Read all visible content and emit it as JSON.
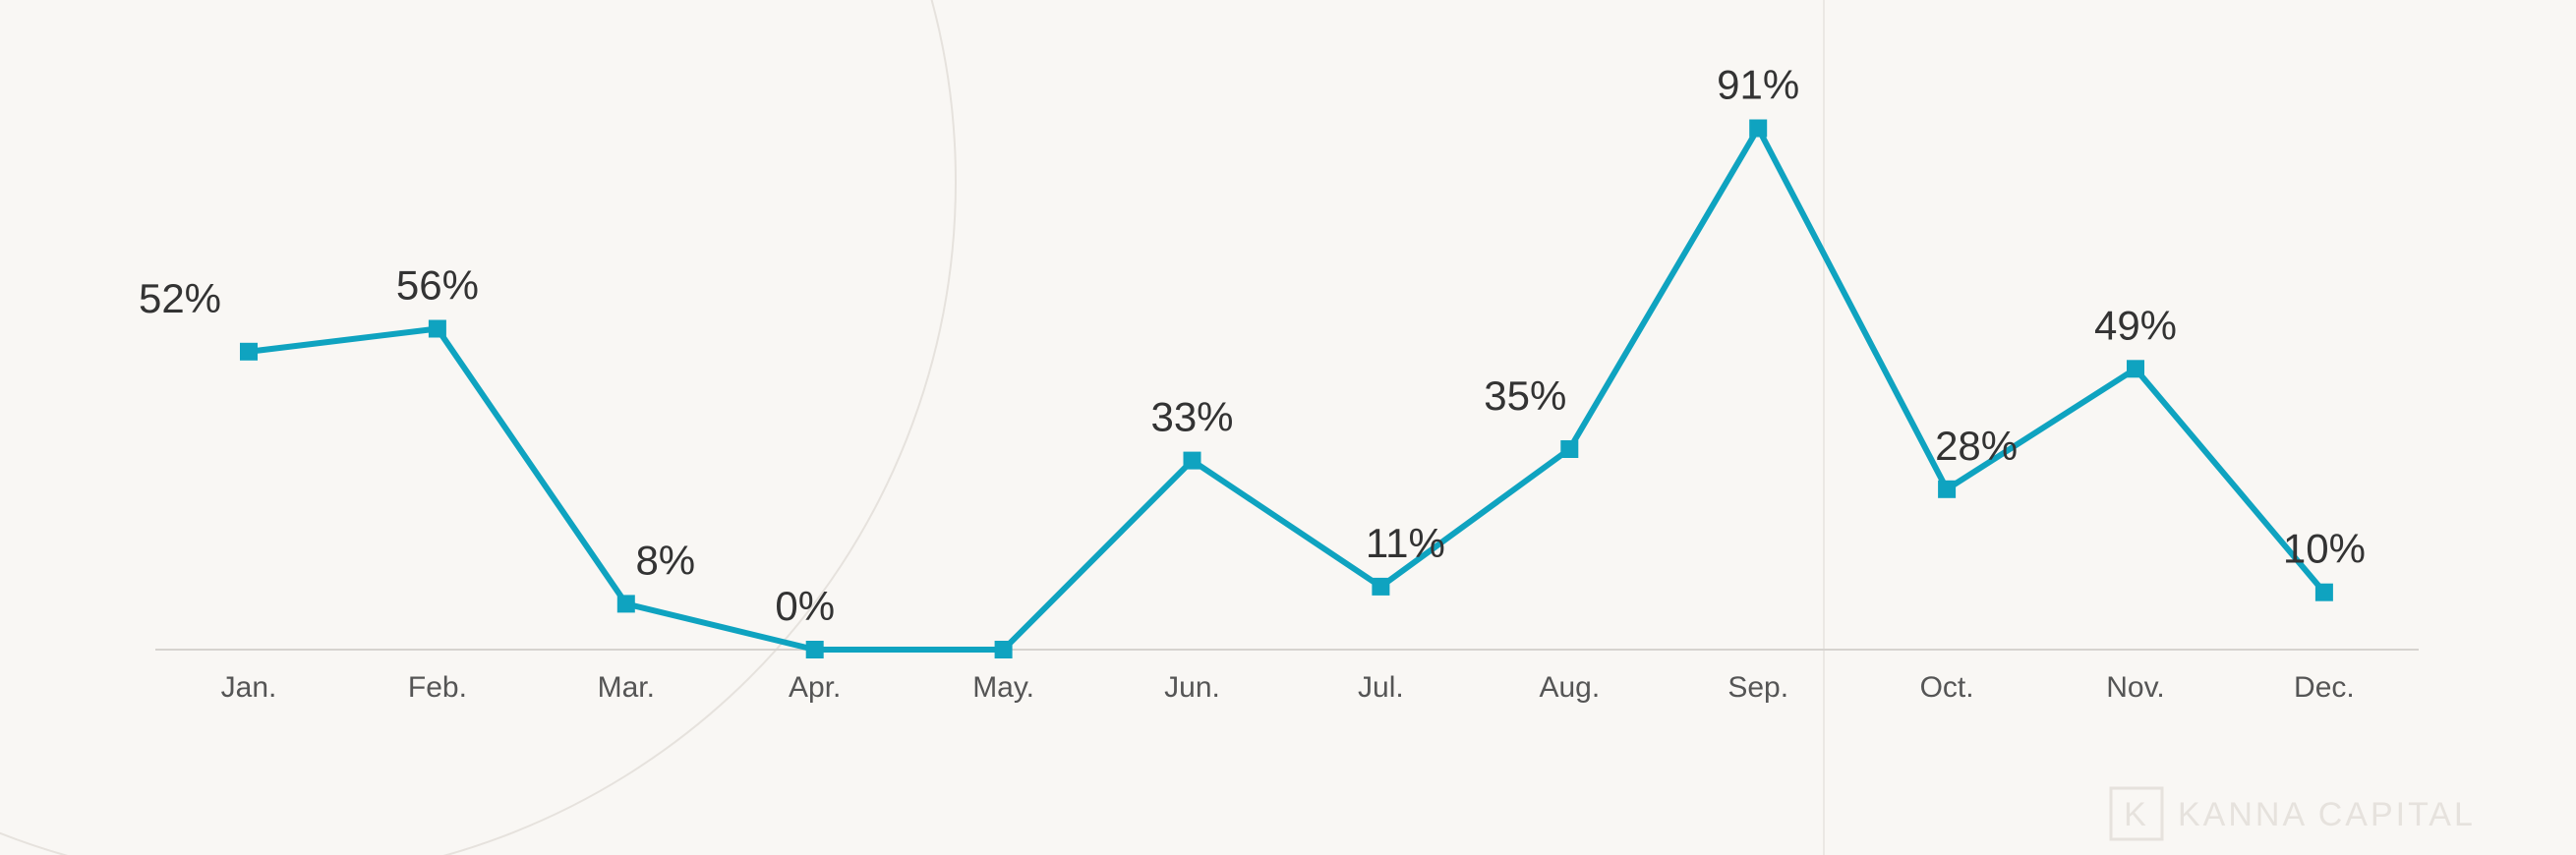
{
  "brand": {
    "name": "KANNA CAPITAL",
    "monogram": "K"
  },
  "colors": {
    "background": "#f9f7f4",
    "line": "#0fa3c0",
    "axis": "#d6d3cf",
    "label": "#333333",
    "tick": "#555555"
  },
  "chart_data": {
    "type": "line",
    "categories": [
      "Jan.",
      "Feb.",
      "Mar.",
      "Apr.",
      "May.",
      "Jun.",
      "Jul.",
      "Aug.",
      "Sep.",
      "Oct.",
      "Nov.",
      "Dec."
    ],
    "values": [
      52,
      56,
      8,
      0,
      0,
      33,
      11,
      35,
      91,
      28,
      49,
      10
    ],
    "value_labels": [
      "52%",
      "56%",
      "8%",
      "0%",
      "",
      "33%",
      "11%",
      "35%",
      "91%",
      "28%",
      "49%",
      "10%"
    ],
    "ylim": [
      0,
      100
    ],
    "grid": false,
    "legend": "none",
    "marker": "square"
  }
}
